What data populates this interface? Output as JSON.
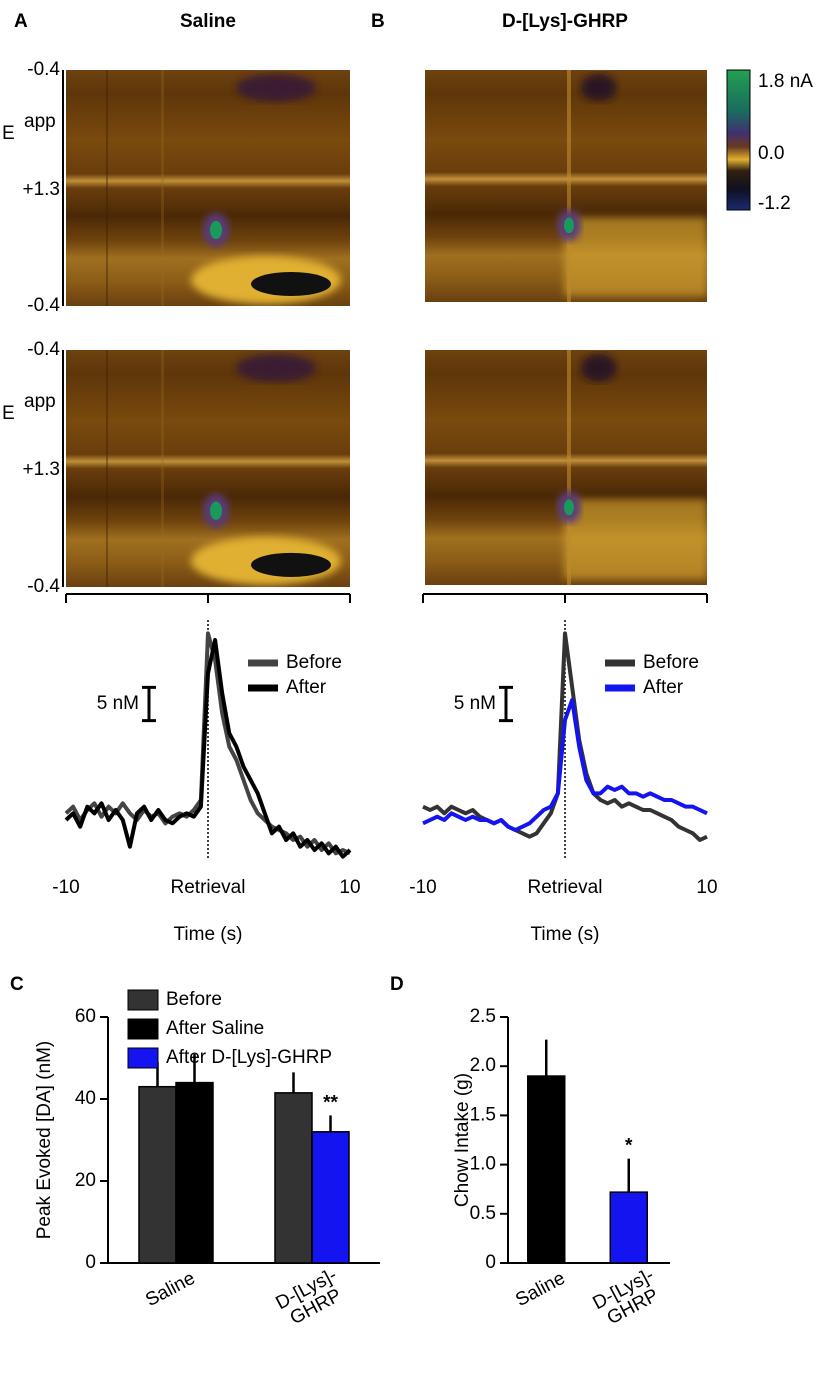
{
  "chart_data": [
    {
      "type": "line",
      "panel": "A",
      "title": "Saline",
      "heatmap": {
        "ylabel": "E",
        "ylabel_sup": "app",
        "ytick_labels": [
          "-0.4",
          "+1.3",
          "-0.4"
        ]
      },
      "scale_bar": {
        "value": 5,
        "label": "5 nM"
      },
      "x": [
        -10,
        -9.5,
        -9,
        -8.5,
        -8,
        -7.5,
        -7,
        -6.5,
        -6,
        -5.5,
        -5,
        -4.5,
        -4,
        -3.5,
        -3,
        -2.5,
        -2,
        -1.5,
        -1,
        -0.5,
        0,
        0.5,
        1,
        1.5,
        2,
        2.5,
        3,
        3.5,
        4,
        4.5,
        5,
        5.5,
        6,
        6.5,
        7,
        7.5,
        8,
        8.5,
        9,
        9.5,
        10
      ],
      "xlim": [
        -10,
        10
      ],
      "xticks": [
        -10,
        {
          "value": 0,
          "label": "Retrieval"
        },
        10
      ],
      "xlabel": "Time (s)",
      "ylim": [
        -6,
        30
      ],
      "series": [
        {
          "name": "Before",
          "color": "#444444",
          "values": [
            1,
            2,
            0,
            1.5,
            2.5,
            0.5,
            2,
            1,
            2.5,
            1,
            0,
            1.5,
            0.5,
            1,
            -0.5,
            0.5,
            1,
            0.5,
            1.5,
            3,
            28,
            24,
            16,
            11,
            9,
            6,
            3,
            1,
            0,
            -1,
            -1.5,
            -2,
            -3,
            -2.5,
            -4,
            -3,
            -4.5,
            -3.5,
            -5,
            -4.5,
            -5
          ]
        },
        {
          "name": "After",
          "color": "#000000",
          "values": [
            0,
            1,
            -1,
            2,
            1,
            2.5,
            0,
            1.5,
            0,
            -4,
            1,
            2,
            0,
            1.5,
            0,
            -0.5,
            0.5,
            1,
            0.5,
            2,
            22,
            27,
            19,
            13,
            11,
            8,
            6,
            4,
            1,
            -2,
            -1,
            -3,
            -2,
            -4,
            -3,
            -4.5,
            -3.5,
            -5,
            -4,
            -5.5,
            -4.5
          ]
        }
      ]
    },
    {
      "type": "line",
      "panel": "B",
      "title": "D-[Lys]-GHRP",
      "colorbar": {
        "lim": [
          -1.2,
          1.8
        ],
        "ticks": [
          {
            "value": 1.8,
            "label": "1.8 nA"
          },
          {
            "value": 0,
            "label": "0.0"
          },
          -1.2
        ]
      },
      "scale_bar": {
        "value": 5,
        "label": "5 nM"
      },
      "x": [
        -10,
        -9.5,
        -9,
        -8.5,
        -8,
        -7.5,
        -7,
        -6.5,
        -6,
        -5.5,
        -5,
        -4.5,
        -4,
        -3.5,
        -3,
        -2.5,
        -2,
        -1.5,
        -1,
        -0.5,
        0,
        0.5,
        1,
        1.5,
        2,
        2.5,
        3,
        3.5,
        4,
        4.5,
        5,
        5.5,
        6,
        6.5,
        7,
        7.5,
        8,
        8.5,
        9,
        9.5,
        10
      ],
      "xlim": [
        -10,
        10
      ],
      "xticks": [
        -10,
        {
          "value": 0,
          "label": "Retrieval"
        },
        10
      ],
      "xlabel": "Time (s)",
      "ylim": [
        -6,
        30
      ],
      "series": [
        {
          "name": "Before",
          "color": "#333333",
          "values": [
            2,
            1.5,
            2,
            1,
            2,
            1.5,
            1,
            1.5,
            0.5,
            0,
            -0.5,
            0,
            -1,
            -1.5,
            -2,
            -2.5,
            -2,
            -0.5,
            1,
            4,
            28,
            20,
            12,
            7,
            4,
            3,
            2.5,
            3,
            2,
            2.5,
            2,
            1.5,
            1.5,
            1,
            0.5,
            0,
            -1,
            -1.5,
            -2,
            -3,
            -2.5
          ]
        },
        {
          "name": "After",
          "color": "#1414f0",
          "values": [
            -0.5,
            0,
            0.5,
            0,
            1,
            0.5,
            0,
            0.5,
            0,
            0,
            -0.5,
            0,
            -1,
            -1.5,
            -1,
            -0.5,
            0.5,
            1.5,
            2,
            4,
            15,
            18,
            11,
            6,
            4,
            4,
            5,
            4.5,
            5,
            4,
            4,
            3.5,
            4,
            3.5,
            3,
            3,
            2.5,
            2,
            2,
            1.5,
            1
          ]
        }
      ]
    },
    {
      "type": "bar",
      "panel": "C",
      "ylabel": "Peak Evoked [DA] (nM)",
      "categories": [
        "Saline",
        "D-[Lys]-GHRP"
      ],
      "series": [
        {
          "name": "Before",
          "color": "#333333",
          "values": [
            43,
            41.5
          ],
          "errors": [
            6,
            5
          ]
        },
        {
          "name": "After Saline",
          "color": "#000000",
          "values": [
            44,
            null
          ],
          "errors": [
            7,
            null
          ]
        },
        {
          "name": "After D-[Lys]-GHRP",
          "color": "#1414f0",
          "values": [
            null,
            32
          ],
          "errors": [
            null,
            4
          ]
        }
      ],
      "ylim": [
        0,
        60
      ],
      "yticks": [
        0,
        20,
        40,
        60
      ],
      "annotations": [
        "**"
      ]
    },
    {
      "type": "bar",
      "panel": "D",
      "ylabel": "Chow Intake (g)",
      "categories": [
        "Saline",
        "D-[Lys]-GHRP"
      ],
      "series": [
        {
          "color": "#000000",
          "values": [
            1.9,
            null
          ],
          "errors": [
            0.37,
            null
          ]
        },
        {
          "color": "#1414f0",
          "values": [
            null,
            0.72
          ],
          "errors": [
            null,
            0.34
          ]
        }
      ],
      "ylim": [
        0,
        2.5
      ],
      "yticks": [
        0,
        0.5,
        {
          "value": 1,
          "label": "1.0"
        },
        1.5,
        {
          "value": 2,
          "label": "2.0"
        },
        2.5
      ],
      "annotations": [
        "*"
      ]
    }
  ]
}
